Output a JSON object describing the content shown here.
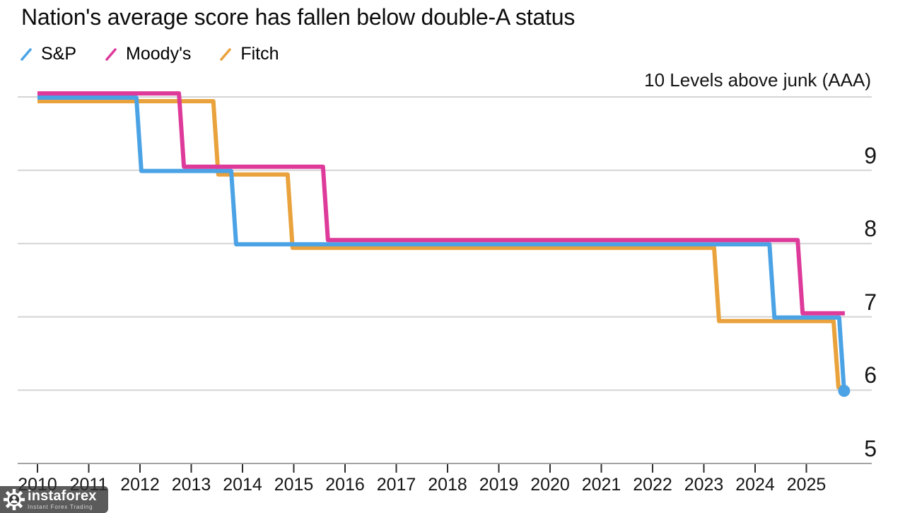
{
  "chart_data": {
    "type": "line",
    "step": true,
    "title": "Nation's average score has fallen below double-A status",
    "grid": true,
    "legend_position": "top-left",
    "x_axis": {
      "tick_labels": [
        "2010",
        "2011",
        "2012",
        "2013",
        "2014",
        "2015",
        "2016",
        "2017",
        "2018",
        "2019",
        "2020",
        "2021",
        "2022",
        "2023",
        "2024",
        "2025"
      ],
      "tick_values": [
        2010,
        2011,
        2012,
        2013,
        2014,
        2015,
        2016,
        2017,
        2018,
        2019,
        2020,
        2021,
        2022,
        2023,
        2024,
        2025
      ],
      "range": [
        2010,
        2026
      ]
    },
    "y_axis": {
      "label": "10 Levels above junk (AAA)",
      "tick_labels": [
        "9",
        "8",
        "7",
        "6",
        "5"
      ],
      "tick_values": [
        9,
        8,
        7,
        6,
        5
      ],
      "top_level": 10,
      "range": [
        5,
        10
      ]
    },
    "series": [
      {
        "name": "S&P",
        "color": "#4BA3E6",
        "end_dot": true,
        "points": [
          [
            2010.0,
            10
          ],
          [
            2011.93,
            9
          ],
          [
            2013.78,
            8
          ],
          [
            2024.28,
            7
          ],
          [
            2025.64,
            6
          ],
          [
            2025.72,
            6
          ]
        ]
      },
      {
        "name": "Moody's",
        "color": "#DE3A9A",
        "end_dot": false,
        "points": [
          [
            2010.0,
            10
          ],
          [
            2012.76,
            9
          ],
          [
            2015.57,
            8
          ],
          [
            2024.83,
            7
          ],
          [
            2025.75,
            7
          ]
        ]
      },
      {
        "name": "Fitch",
        "color": "#E9A23C",
        "end_dot": false,
        "points": [
          [
            2010.0,
            10
          ],
          [
            2013.43,
            9
          ],
          [
            2014.88,
            8
          ],
          [
            2023.2,
            7
          ],
          [
            2025.53,
            6
          ],
          [
            2025.69,
            6
          ]
        ]
      }
    ]
  },
  "watermark": {
    "brand": "instaforex",
    "tagline": "Instant Forex Trading"
  }
}
